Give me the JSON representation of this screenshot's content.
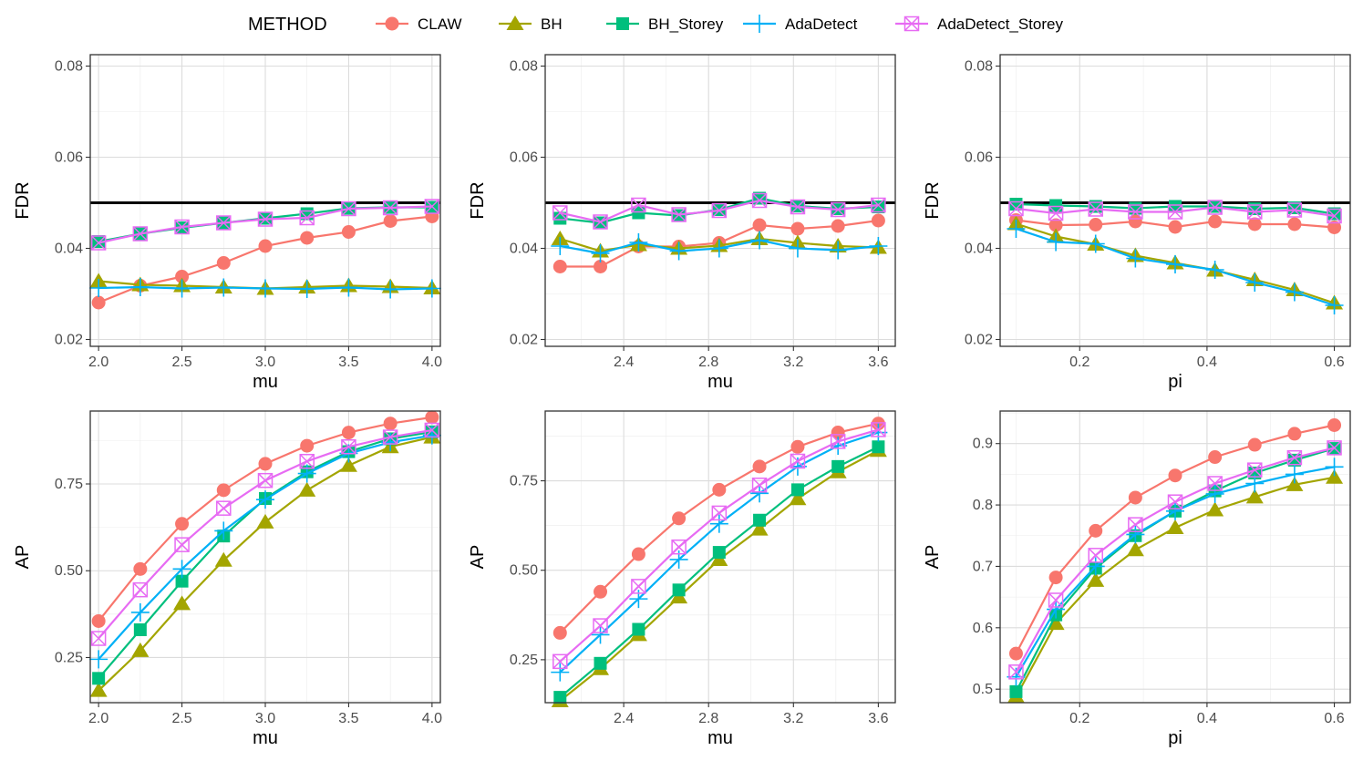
{
  "legend": {
    "title": "METHOD",
    "entries": [
      {
        "name": "CLAW",
        "color": "#F8766D",
        "shape": "circle"
      },
      {
        "name": "BH",
        "color": "#A3A500",
        "shape": "triangle"
      },
      {
        "name": "BH_Storey",
        "color": "#00BF7D",
        "shape": "square"
      },
      {
        "name": "AdaDetect",
        "color": "#00B0F6",
        "shape": "plus"
      },
      {
        "name": "AdaDetect_Storey",
        "color": "#E76BF3",
        "shape": "boxx"
      }
    ]
  },
  "chart_data": [
    {
      "type": "line",
      "title": "",
      "xlabel": "mu",
      "ylabel": "FDR",
      "xlim": [
        1.95,
        4.05
      ],
      "ylim": [
        0.0185,
        0.0825
      ],
      "xticks": [
        2.0,
        2.5,
        3.0,
        3.5,
        4.0
      ],
      "xtick_labels": [
        "2.0",
        "2.5",
        "3.0",
        "3.5",
        "4.0"
      ],
      "yticks": [
        0.02,
        0.04,
        0.06,
        0.08
      ],
      "ytick_labels": [
        "0.02",
        "0.04",
        "0.06",
        "0.08"
      ],
      "hline": 0.05,
      "x": [
        2.0,
        2.25,
        2.5,
        2.75,
        3.0,
        3.25,
        3.5,
        3.75,
        4.0
      ],
      "series": [
        {
          "name": "CLAW",
          "values": [
            0.0281,
            0.0318,
            0.0338,
            0.0368,
            0.0405,
            0.0423,
            0.0436,
            0.046,
            0.047
          ]
        },
        {
          "name": "BH",
          "values": [
            0.0328,
            0.032,
            0.0318,
            0.0315,
            0.0312,
            0.0315,
            0.0318,
            0.0316,
            0.0313
          ]
        },
        {
          "name": "BH_Storey",
          "values": [
            0.0415,
            0.0432,
            0.0445,
            0.0456,
            0.0466,
            0.0476,
            0.0488,
            0.049,
            0.049
          ]
        },
        {
          "name": "AdaDetect",
          "values": [
            0.0313,
            0.0315,
            0.0312,
            0.0314,
            0.0312,
            0.0311,
            0.0314,
            0.031,
            0.0312
          ]
        },
        {
          "name": "AdaDetect_Storey",
          "values": [
            0.0412,
            0.0432,
            0.0447,
            0.0456,
            0.0464,
            0.0467,
            0.0487,
            0.0489,
            0.0492
          ]
        }
      ]
    },
    {
      "type": "line",
      "title": "",
      "xlabel": "mu",
      "ylabel": "FDR",
      "xlim": [
        2.03,
        3.68
      ],
      "ylim": [
        0.0185,
        0.0825
      ],
      "xticks": [
        2.4,
        2.8,
        3.2,
        3.6
      ],
      "xtick_labels": [
        "2.4",
        "2.8",
        "3.2",
        "3.6"
      ],
      "yticks": [
        0.02,
        0.04,
        0.06,
        0.08
      ],
      "ytick_labels": [
        "0.02",
        "0.04",
        "0.06",
        "0.08"
      ],
      "hline": 0.05,
      "x": [
        2.1,
        2.29,
        2.47,
        2.66,
        2.85,
        3.04,
        3.22,
        3.41,
        3.6
      ],
      "series": [
        {
          "name": "CLAW",
          "values": [
            0.036,
            0.036,
            0.0404,
            0.0404,
            0.0412,
            0.0451,
            0.0443,
            0.0449,
            0.0461
          ]
        },
        {
          "name": "BH",
          "values": [
            0.0421,
            0.0394,
            0.0408,
            0.04,
            0.0406,
            0.0421,
            0.0412,
            0.0405,
            0.0402
          ]
        },
        {
          "name": "BH_Storey",
          "values": [
            0.0466,
            0.0456,
            0.0478,
            0.0472,
            0.0485,
            0.051,
            0.0493,
            0.0487,
            0.0491
          ]
        },
        {
          "name": "AdaDetect",
          "values": [
            0.0405,
            0.0389,
            0.0413,
            0.0394,
            0.04,
            0.0418,
            0.04,
            0.0396,
            0.0405
          ]
        },
        {
          "name": "AdaDetect_Storey",
          "values": [
            0.0478,
            0.0458,
            0.0495,
            0.0474,
            0.0483,
            0.0505,
            0.0491,
            0.0485,
            0.0495
          ]
        }
      ]
    },
    {
      "type": "line",
      "title": "",
      "xlabel": "pi",
      "ylabel": "FDR",
      "xlim": [
        0.075,
        0.625
      ],
      "ylim": [
        0.0185,
        0.0825
      ],
      "xticks": [
        0.2,
        0.4,
        0.6
      ],
      "xtick_labels": [
        "0.2",
        "0.4",
        "0.6"
      ],
      "yticks": [
        0.02,
        0.04,
        0.06,
        0.08
      ],
      "ytick_labels": [
        "0.02",
        "0.04",
        "0.06",
        "0.08"
      ],
      "hline": 0.05,
      "x": [
        0.1,
        0.1625,
        0.225,
        0.2875,
        0.35,
        0.4125,
        0.475,
        0.5375,
        0.6
      ],
      "series": [
        {
          "name": "CLAW",
          "values": [
            0.0462,
            0.0451,
            0.0452,
            0.0459,
            0.0447,
            0.0459,
            0.0453,
            0.0453,
            0.0446
          ]
        },
        {
          "name": "BH",
          "values": [
            0.0454,
            0.0426,
            0.0409,
            0.0384,
            0.0368,
            0.0352,
            0.0331,
            0.0309,
            0.028
          ]
        },
        {
          "name": "BH_Storey",
          "values": [
            0.0497,
            0.0494,
            0.0492,
            0.0488,
            0.0492,
            0.0492,
            0.0487,
            0.0489,
            0.0476
          ]
        },
        {
          "name": "AdaDetect",
          "values": [
            0.0443,
            0.0414,
            0.041,
            0.0378,
            0.0365,
            0.0353,
            0.0325,
            0.0304,
            0.0275
          ]
        },
        {
          "name": "AdaDetect_Storey",
          "values": [
            0.0487,
            0.0477,
            0.0486,
            0.048,
            0.048,
            0.049,
            0.048,
            0.0484,
            0.0471
          ]
        }
      ]
    },
    {
      "type": "line",
      "title": "",
      "xlabel": "mu",
      "ylabel": "AP",
      "xlim": [
        1.95,
        4.05
      ],
      "ylim": [
        0.12,
        0.96
      ],
      "xticks": [
        2.0,
        2.5,
        3.0,
        3.5,
        4.0
      ],
      "xtick_labels": [
        "2.0",
        "2.5",
        "3.0",
        "3.5",
        "4.0"
      ],
      "yticks": [
        0.25,
        0.5,
        0.75
      ],
      "ytick_labels": [
        "0.25",
        "0.50",
        "0.75"
      ],
      "x": [
        2.0,
        2.25,
        2.5,
        2.75,
        3.0,
        3.25,
        3.5,
        3.75,
        4.0
      ],
      "series": [
        {
          "name": "CLAW",
          "values": [
            0.355,
            0.505,
            0.635,
            0.732,
            0.808,
            0.86,
            0.898,
            0.924,
            0.942
          ]
        },
        {
          "name": "BH",
          "values": [
            0.155,
            0.27,
            0.405,
            0.53,
            0.64,
            0.732,
            0.803,
            0.857,
            0.885
          ]
        },
        {
          "name": "BH_Storey",
          "values": [
            0.19,
            0.33,
            0.47,
            0.6,
            0.708,
            0.785,
            0.843,
            0.88,
            0.9
          ]
        },
        {
          "name": "AdaDetect",
          "values": [
            0.245,
            0.38,
            0.505,
            0.615,
            0.705,
            0.78,
            0.838,
            0.87,
            0.89
          ]
        },
        {
          "name": "AdaDetect_Storey",
          "values": [
            0.305,
            0.445,
            0.575,
            0.68,
            0.76,
            0.815,
            0.857,
            0.885,
            0.905
          ]
        }
      ]
    },
    {
      "type": "line",
      "title": "",
      "xlabel": "mu",
      "ylabel": "AP",
      "xlim": [
        2.03,
        3.68
      ],
      "ylim": [
        0.13,
        0.945
      ],
      "xticks": [
        2.4,
        2.8,
        3.2,
        3.6
      ],
      "xtick_labels": [
        "2.4",
        "2.8",
        "3.2",
        "3.6"
      ],
      "yticks": [
        0.25,
        0.5,
        0.75
      ],
      "ytick_labels": [
        "0.25",
        "0.50",
        "0.75"
      ],
      "x": [
        2.1,
        2.29,
        2.47,
        2.66,
        2.85,
        3.04,
        3.22,
        3.41,
        3.6
      ],
      "series": [
        {
          "name": "CLAW",
          "values": [
            0.325,
            0.44,
            0.545,
            0.645,
            0.725,
            0.79,
            0.845,
            0.885,
            0.91
          ]
        },
        {
          "name": "BH",
          "values": [
            0.135,
            0.225,
            0.32,
            0.425,
            0.53,
            0.615,
            0.7,
            0.775,
            0.835
          ]
        },
        {
          "name": "BH_Storey",
          "values": [
            0.145,
            0.24,
            0.335,
            0.445,
            0.55,
            0.64,
            0.725,
            0.79,
            0.845
          ]
        },
        {
          "name": "AdaDetect",
          "values": [
            0.215,
            0.32,
            0.42,
            0.53,
            0.63,
            0.715,
            0.79,
            0.848,
            0.885
          ]
        },
        {
          "name": "AdaDetect_Storey",
          "values": [
            0.245,
            0.345,
            0.455,
            0.565,
            0.66,
            0.738,
            0.805,
            0.86,
            0.893
          ]
        }
      ]
    },
    {
      "type": "line",
      "title": "",
      "xlabel": "pi",
      "ylabel": "AP",
      "xlim": [
        0.075,
        0.625
      ],
      "ylim": [
        0.478,
        0.953
      ],
      "xticks": [
        0.2,
        0.4,
        0.6
      ],
      "xtick_labels": [
        "0.2",
        "0.4",
        "0.6"
      ],
      "yticks": [
        0.5,
        0.6,
        0.7,
        0.8,
        0.9
      ],
      "ytick_labels": [
        "0.5",
        "0.6",
        "0.7",
        "0.8",
        "0.9"
      ],
      "x": [
        0.1,
        0.1625,
        0.225,
        0.2875,
        0.35,
        0.4125,
        0.475,
        0.5375,
        0.6
      ],
      "series": [
        {
          "name": "CLAW",
          "values": [
            0.558,
            0.682,
            0.758,
            0.812,
            0.848,
            0.878,
            0.898,
            0.916,
            0.93
          ]
        },
        {
          "name": "BH",
          "values": [
            0.488,
            0.607,
            0.677,
            0.727,
            0.763,
            0.792,
            0.813,
            0.833,
            0.845
          ]
        },
        {
          "name": "BH_Storey",
          "values": [
            0.496,
            0.621,
            0.697,
            0.75,
            0.79,
            0.823,
            0.852,
            0.873,
            0.892
          ]
        },
        {
          "name": "AdaDetect",
          "values": [
            0.52,
            0.63,
            0.7,
            0.752,
            0.79,
            0.818,
            0.835,
            0.85,
            0.862
          ]
        },
        {
          "name": "AdaDetect_Storey",
          "values": [
            0.528,
            0.645,
            0.718,
            0.768,
            0.805,
            0.835,
            0.857,
            0.877,
            0.893
          ]
        }
      ]
    }
  ]
}
